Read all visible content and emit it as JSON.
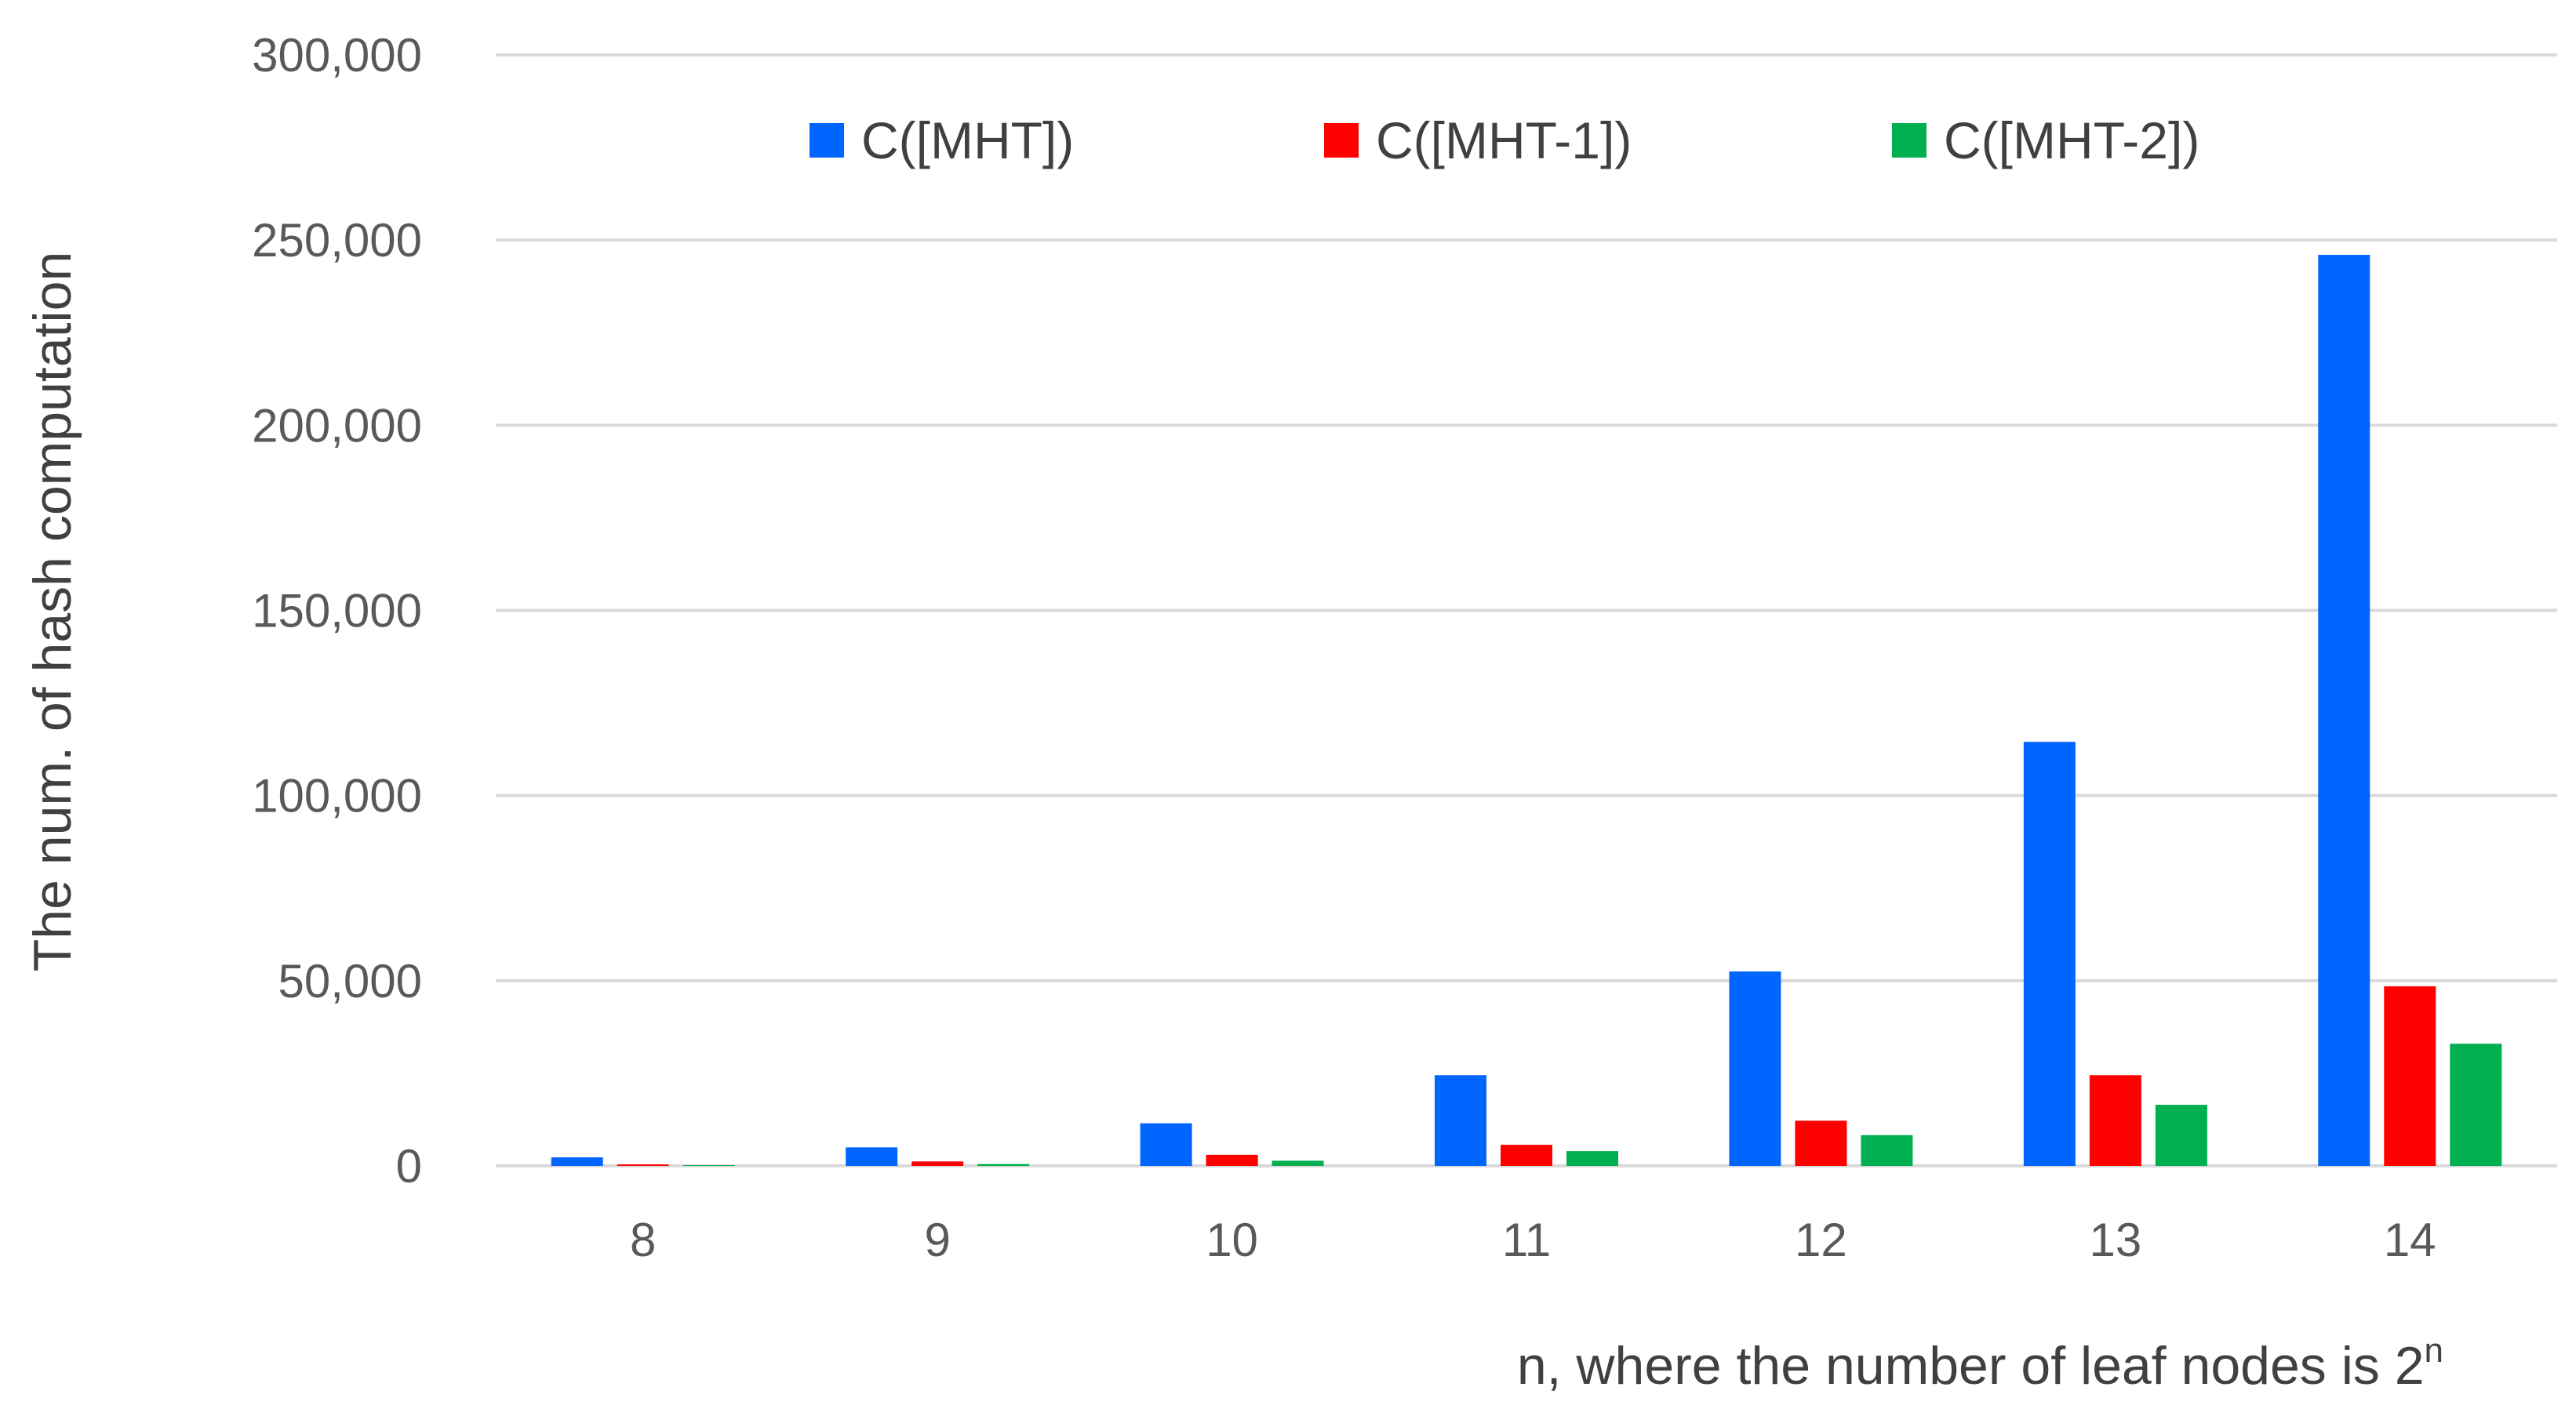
{
  "chart_data": {
    "type": "bar",
    "title": "",
    "xlabel": "n, where the number of leaf nodes is 2",
    "xlabel_superscript": "n",
    "ylabel": "The num. of hash computation",
    "categories": [
      "8",
      "9",
      "10",
      "11",
      "12",
      "13",
      "14"
    ],
    "ylim": [
      0,
      300000
    ],
    "yticks": [
      0,
      50000,
      100000,
      150000,
      200000,
      250000,
      300000
    ],
    "ytick_labels": [
      "0",
      "50,000",
      "100,000",
      "150,000",
      "200,000",
      "250,000",
      "300,000"
    ],
    "grid": true,
    "legend_position": "top",
    "series": [
      {
        "name": "C([MHT])",
        "color": "#0066ff",
        "values": [
          2300,
          5000,
          11500,
          24500,
          52500,
          114500,
          246000
        ]
      },
      {
        "name": "C([MHT-1])",
        "color": "#ff0000",
        "values": [
          400,
          1200,
          3000,
          5700,
          12200,
          24500,
          48500
        ]
      },
      {
        "name": "C([MHT-2])",
        "color": "#00b050",
        "values": [
          200,
          500,
          1400,
          4000,
          8300,
          16500,
          33000
        ]
      }
    ]
  }
}
